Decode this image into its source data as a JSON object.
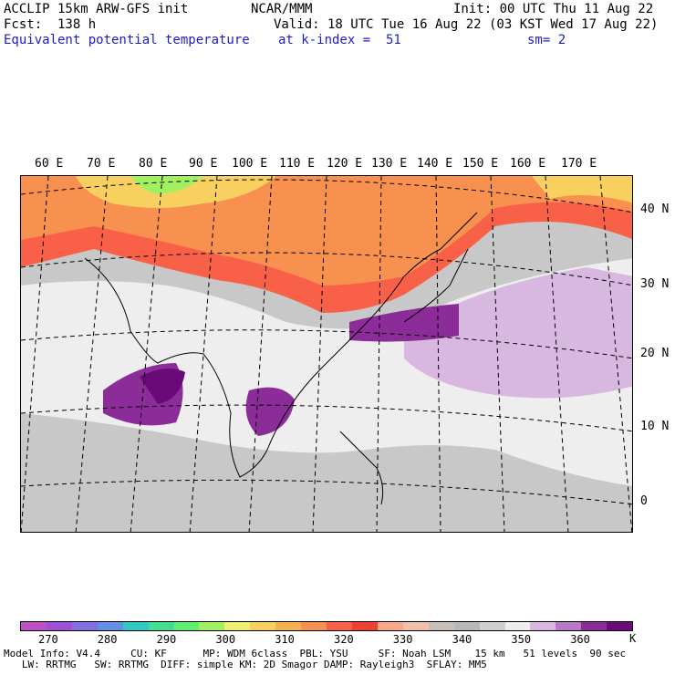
{
  "header": {
    "line1_left": "ACCLIP 15km ARW-GFS init",
    "line1_mid": "NCAR/MMM",
    "line1_right": "Init: 00 UTC Thu 11 Aug 22",
    "line2_left": "Fcst:  138 h",
    "line2_right": "Valid: 18 UTC Tue 16 Aug 22 (03 KST Wed 17 Aug 22)",
    "line3_left": "Equivalent potential temperature",
    "line3_mid": "at k-index =  51",
    "line3_right": "sm= 2"
  },
  "map": {
    "lon_labels": [
      "60 E",
      "70 E",
      "80 E",
      "90 E",
      "100 E",
      "110 E",
      "120 E",
      "130 E",
      "140 E",
      "150 E",
      "160 E",
      "170 E"
    ],
    "lat_labels": [
      "40 N",
      "30 N",
      "20 N",
      "10 N",
      "0"
    ]
  },
  "colorbar": {
    "colors": [
      "#c050c8",
      "#a050d8",
      "#8070e0",
      "#6090e8",
      "#30c8c0",
      "#40e090",
      "#60f070",
      "#a0f060",
      "#f0f070",
      "#f8d060",
      "#f8b050",
      "#f89050",
      "#f86048",
      "#f04030",
      "#f8a888",
      "#f0c0a8",
      "#c8c0b8",
      "#b8b8b8",
      "#d0d0d0",
      "#eeeeee",
      "#d8b8e0",
      "#b878c8",
      "#8c2c98",
      "#6a0a78"
    ],
    "labels": [
      "270",
      "280",
      "290",
      "300",
      "310",
      "320",
      "330",
      "340",
      "350",
      "360"
    ],
    "unit": "K"
  },
  "footer": {
    "line1": "Model Info: V4.4     CU: KF      MP: WDM 6class  PBL: YSU     SF: Noah LSM    15 km   51 levels  90 sec",
    "line2": "   LW: RRTMG   SW: RRTMG  DIFF: simple KM: 2D Smagor DAMP: Rayleigh3  SFLAY: MM5"
  }
}
